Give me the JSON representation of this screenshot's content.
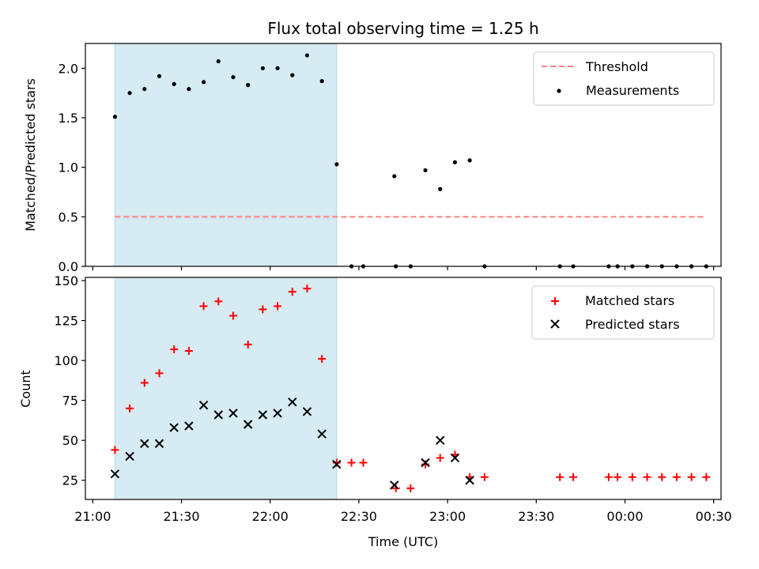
{
  "chart_data": {
    "type": "scatter",
    "title": "Flux total observing time = 1.25 h",
    "xlabel": "Time (UTC)",
    "x_ticks": [
      "21:00",
      "21:30",
      "22:00",
      "22:30",
      "23:00",
      "23:30",
      "00:00",
      "00:30"
    ],
    "x_tick_minutes": [
      1260,
      1290,
      1320,
      1350,
      1380,
      1410,
      1440,
      1470
    ],
    "xlim_minutes": [
      1257.5,
      1472.5
    ],
    "shaded_span_minutes": [
      1267.5,
      1342.5
    ],
    "colors": {
      "span": "#add8e6",
      "threshold": "#ff7f7f",
      "measurements": "#000000",
      "matched": "#ff0000",
      "predicted": "#000000"
    },
    "panels": [
      {
        "ylabel": "Matched/Predicted stars",
        "ylim": [
          0,
          2.25
        ],
        "y_ticks": [
          "0.0",
          "0.5",
          "1.0",
          "1.5",
          "2.0"
        ],
        "y_tick_values": [
          0,
          0.5,
          1.0,
          1.5,
          2.0
        ],
        "legend_position": "top-right",
        "threshold": {
          "name": "Threshold",
          "value": 0.5,
          "x_range_minutes": [
            1267.5,
            1467.5
          ]
        },
        "series": [
          {
            "name": "Measurements",
            "marker": "dot",
            "points": [
              [
                1267.5,
                1.51
              ],
              [
                1272.5,
                1.75
              ],
              [
                1277.5,
                1.79
              ],
              [
                1282.5,
                1.92
              ],
              [
                1287.5,
                1.84
              ],
              [
                1292.5,
                1.79
              ],
              [
                1297.5,
                1.86
              ],
              [
                1302.5,
                2.07
              ],
              [
                1307.5,
                1.91
              ],
              [
                1312.5,
                1.83
              ],
              [
                1317.5,
                2.0
              ],
              [
                1322.5,
                2.0
              ],
              [
                1327.5,
                1.93
              ],
              [
                1332.5,
                2.13
              ],
              [
                1337.5,
                1.87
              ],
              [
                1342.5,
                1.03
              ],
              [
                1347.5,
                0.0
              ],
              [
                1351.5,
                0.0
              ],
              [
                1362.0,
                0.91
              ],
              [
                1362.5,
                0.0
              ],
              [
                1367.5,
                0.0
              ],
              [
                1372.5,
                0.97
              ],
              [
                1377.5,
                0.78
              ],
              [
                1382.5,
                1.05
              ],
              [
                1387.5,
                1.07
              ],
              [
                1392.5,
                0.0
              ],
              [
                1418.0,
                0.0
              ],
              [
                1422.5,
                0.0
              ],
              [
                1434.5,
                0.0
              ],
              [
                1437.5,
                0.0
              ],
              [
                1442.5,
                0.0
              ],
              [
                1447.5,
                0.0
              ],
              [
                1452.5,
                0.0
              ],
              [
                1457.5,
                0.0
              ],
              [
                1462.5,
                0.0
              ],
              [
                1467.5,
                0.0
              ]
            ]
          }
        ]
      },
      {
        "ylabel": "Count",
        "ylim": [
          13,
          152
        ],
        "y_ticks": [
          "25",
          "50",
          "75",
          "100",
          "125",
          "150"
        ],
        "y_tick_values": [
          25,
          50,
          75,
          100,
          125,
          150
        ],
        "legend_position": "top-right",
        "series": [
          {
            "name": "Matched stars",
            "marker": "plus",
            "points": [
              [
                1267.5,
                44
              ],
              [
                1272.5,
                70
              ],
              [
                1277.5,
                86
              ],
              [
                1282.5,
                92
              ],
              [
                1287.5,
                107
              ],
              [
                1292.5,
                106
              ],
              [
                1297.5,
                134
              ],
              [
                1302.5,
                137
              ],
              [
                1307.5,
                128
              ],
              [
                1312.5,
                110
              ],
              [
                1317.5,
                132
              ],
              [
                1322.5,
                134
              ],
              [
                1327.5,
                143
              ],
              [
                1332.5,
                145
              ],
              [
                1337.5,
                101
              ],
              [
                1342.5,
                36
              ],
              [
                1347.5,
                36
              ],
              [
                1351.5,
                36
              ],
              [
                1362.5,
                20
              ],
              [
                1367.5,
                20
              ],
              [
                1372.5,
                35
              ],
              [
                1377.5,
                39
              ],
              [
                1382.5,
                41
              ],
              [
                1387.5,
                27
              ],
              [
                1392.5,
                27
              ],
              [
                1418.0,
                27
              ],
              [
                1422.5,
                27
              ],
              [
                1434.5,
                27
              ],
              [
                1437.5,
                27
              ],
              [
                1442.5,
                27
              ],
              [
                1447.5,
                27
              ],
              [
                1452.5,
                27
              ],
              [
                1457.5,
                27
              ],
              [
                1462.5,
                27
              ],
              [
                1467.5,
                27
              ]
            ]
          },
          {
            "name": "Predicted stars",
            "marker": "x",
            "points": [
              [
                1267.5,
                29
              ],
              [
                1272.5,
                40
              ],
              [
                1277.5,
                48
              ],
              [
                1282.5,
                48
              ],
              [
                1287.5,
                58
              ],
              [
                1292.5,
                59
              ],
              [
                1297.5,
                72
              ],
              [
                1302.5,
                66
              ],
              [
                1307.5,
                67
              ],
              [
                1312.5,
                60
              ],
              [
                1317.5,
                66
              ],
              [
                1322.5,
                67
              ],
              [
                1327.5,
                74
              ],
              [
                1332.5,
                68
              ],
              [
                1337.5,
                54
              ],
              [
                1342.5,
                35
              ],
              [
                1362.0,
                22
              ],
              [
                1372.5,
                36
              ],
              [
                1377.5,
                50
              ],
              [
                1382.5,
                39
              ],
              [
                1387.5,
                25
              ]
            ]
          }
        ]
      }
    ]
  }
}
